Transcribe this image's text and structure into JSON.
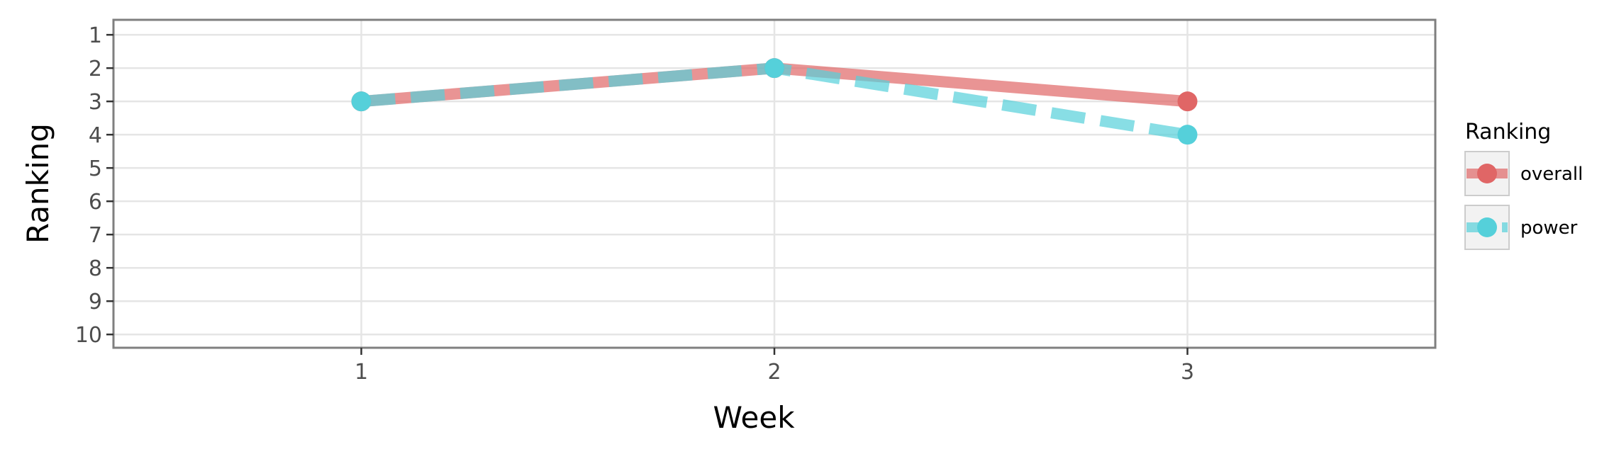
{
  "chart_data": {
    "type": "line",
    "title": "",
    "xlabel": "Week",
    "ylabel": "Ranking",
    "x": [
      1,
      2,
      3
    ],
    "xticks": [
      "1",
      "2",
      "3"
    ],
    "xlim": [
      0.4,
      3.6
    ],
    "yticks": [
      "1",
      "2",
      "3",
      "4",
      "5",
      "6",
      "7",
      "8",
      "9",
      "10"
    ],
    "ylim": [
      10.4,
      0.55
    ],
    "y_reversed": true,
    "grid": true,
    "legend": {
      "title": "Ranking",
      "placement": "right"
    },
    "series": [
      {
        "name": "overall",
        "values": [
          3,
          2,
          3
        ],
        "color": "#E06666",
        "linestyle": "solid"
      },
      {
        "name": "power",
        "values": [
          3,
          2,
          4
        ],
        "color": "#55D0DA",
        "linestyle": "dashed"
      }
    ]
  }
}
